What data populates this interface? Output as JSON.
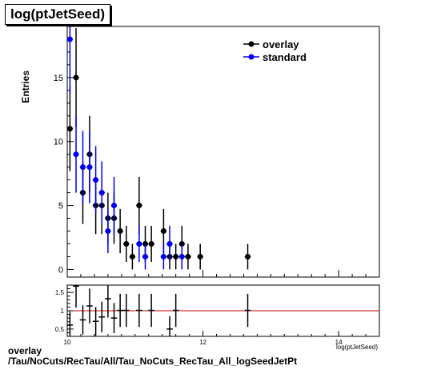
{
  "title": "log(ptJetSeed)",
  "footer": {
    "line1": "overlay",
    "line2": "/Tau/NoCuts/RecTau/All/Tau_NoCuts_RecTau_All_logSeedJetPt"
  },
  "colors": {
    "overlay": "#000000",
    "standard": "#0000ee",
    "ratio_line": "#cc0000"
  },
  "chart_data": [
    {
      "type": "scatter",
      "title": "log(ptJetSeed)",
      "ylabel": "Entries",
      "xlabel": "log(ptJetSeed)",
      "xlim": [
        10,
        14.6
      ],
      "ylim": [
        -0.6,
        19
      ],
      "yticks": [
        0,
        5,
        10,
        15
      ],
      "legend": "top-right",
      "series": [
        {
          "name": "overlay",
          "color": "#000000",
          "points": [
            {
              "x": 10.04,
              "y": 11
            },
            {
              "x": 10.13,
              "y": 15
            },
            {
              "x": 10.23,
              "y": 6
            },
            {
              "x": 10.33,
              "y": 9
            },
            {
              "x": 10.42,
              "y": 5
            },
            {
              "x": 10.51,
              "y": 5
            },
            {
              "x": 10.6,
              "y": 4
            },
            {
              "x": 10.69,
              "y": 4
            },
            {
              "x": 10.78,
              "y": 3
            },
            {
              "x": 10.87,
              "y": 2
            },
            {
              "x": 10.96,
              "y": 1
            },
            {
              "x": 11.06,
              "y": 5
            },
            {
              "x": 11.15,
              "y": 2
            },
            {
              "x": 11.24,
              "y": 2
            },
            {
              "x": 11.42,
              "y": 3
            },
            {
              "x": 11.51,
              "y": 1
            },
            {
              "x": 11.6,
              "y": 1
            },
            {
              "x": 11.69,
              "y": 2
            },
            {
              "x": 11.78,
              "y": 1
            },
            {
              "x": 11.96,
              "y": 1
            },
            {
              "x": 12.66,
              "y": 1
            }
          ]
        },
        {
          "name": "standard",
          "color": "#0000ee",
          "points": [
            {
              "x": 10.04,
              "y": 18
            },
            {
              "x": 10.13,
              "y": 9
            },
            {
              "x": 10.23,
              "y": 8
            },
            {
              "x": 10.33,
              "y": 8
            },
            {
              "x": 10.42,
              "y": 7
            },
            {
              "x": 10.51,
              "y": 6
            },
            {
              "x": 10.6,
              "y": 3
            },
            {
              "x": 10.69,
              "y": 5
            },
            {
              "x": 11.06,
              "y": 2
            },
            {
              "x": 11.15,
              "y": 1
            },
            {
              "x": 11.42,
              "y": 1
            },
            {
              "x": 11.51,
              "y": 2
            },
            {
              "x": 11.69,
              "y": 1
            }
          ]
        }
      ]
    },
    {
      "type": "scatter",
      "xlim": [
        10,
        14.6
      ],
      "ylim": [
        0.3,
        1.7
      ],
      "xticks": [
        10,
        12,
        14
      ],
      "yticks": [
        0.5,
        1,
        1.5
      ],
      "xlabel": "log(ptJetSeed)",
      "reference_line": 1,
      "points": [
        {
          "x": 10.04,
          "y": 0.61
        },
        {
          "x": 10.13,
          "y": 1.67
        },
        {
          "x": 10.23,
          "y": 0.75
        },
        {
          "x": 10.33,
          "y": 1.13
        },
        {
          "x": 10.42,
          "y": 0.71
        },
        {
          "x": 10.51,
          "y": 0.83
        },
        {
          "x": 10.6,
          "y": 1.33
        },
        {
          "x": 10.69,
          "y": 0.8
        },
        {
          "x": 10.78,
          "y": 1.01
        },
        {
          "x": 10.87,
          "y": 1.01
        },
        {
          "x": 11.06,
          "y": 1.01
        },
        {
          "x": 11.24,
          "y": 1.01
        },
        {
          "x": 11.51,
          "y": 0.5
        },
        {
          "x": 11.6,
          "y": 1.01
        },
        {
          "x": 12.66,
          "y": 1.01
        }
      ]
    }
  ]
}
